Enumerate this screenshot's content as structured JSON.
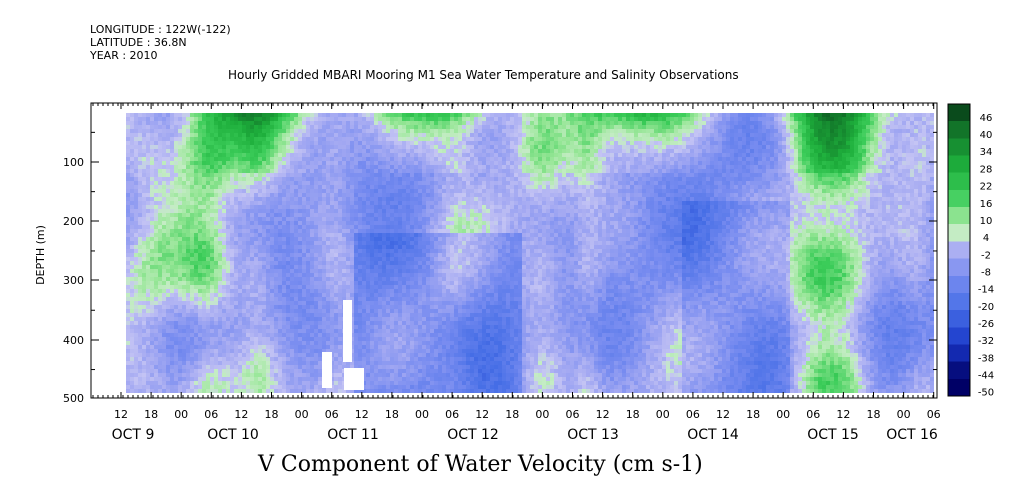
{
  "header": {
    "longitude": "LONGITUDE : 122W(-122)",
    "latitude": "LATITUDE : 36.8N",
    "year": "YEAR : 2010"
  },
  "chart_data": {
    "type": "heatmap",
    "title": "Hourly Gridded MBARI Mooring M1 Sea Water Temperature and Salinity Observations",
    "xlabel": "V Component of Water Velocity (cm s-1)",
    "ylabel": "DEPTH (m)",
    "ylim": [
      500,
      0
    ],
    "yticks": [
      100,
      200,
      300,
      400,
      500
    ],
    "xticks_hour": [
      "12",
      "18",
      "00",
      "06",
      "12",
      "18",
      "00",
      "06",
      "12",
      "18",
      "00",
      "06",
      "12",
      "18",
      "00",
      "06",
      "12",
      "18",
      "00",
      "06",
      "12",
      "18",
      "00",
      "06",
      "12",
      "18",
      "00",
      "06"
    ],
    "xticks_day": [
      "OCT  9",
      "OCT 10",
      "OCT 11",
      "OCT 12",
      "OCT 13",
      "OCT 14",
      "OCT 15",
      "OCT 16"
    ],
    "colorbar_levels": [
      "46",
      "40",
      "34",
      "28",
      "22",
      "16",
      "10",
      "4",
      "-2",
      "-8",
      "-14",
      "-20",
      "-26",
      "-32",
      "-38",
      "-44",
      "-50"
    ],
    "colorbar_range": [
      -50,
      46
    ],
    "colors": {
      "strong_positive": "#0b4d1c",
      "positive": "#22c04a",
      "weak_positive": "#a8eaa8",
      "weak_negative": "#b8b8ee",
      "negative": "#6f86e8",
      "strong_negative": "#000066"
    }
  }
}
